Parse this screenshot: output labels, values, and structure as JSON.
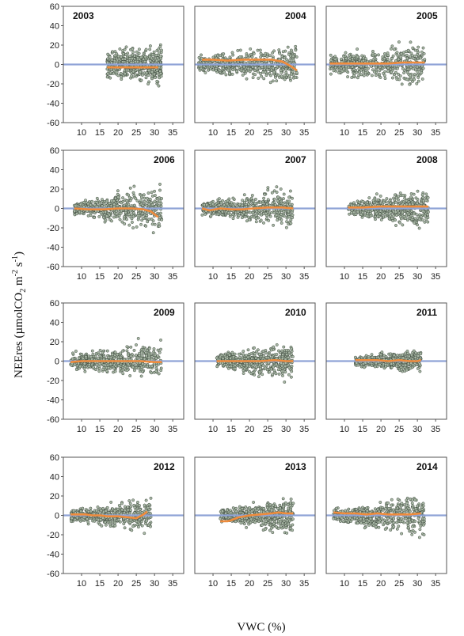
{
  "figure": {
    "ylabel_parts": [
      "NEEres (µmolCO",
      "2",
      " m",
      "-2",
      " s",
      "-1",
      ")"
    ],
    "xlabel": "VWC (%)"
  },
  "colors": {
    "points_fill": "#a9b8a6",
    "points_stroke": "#3e4a3e",
    "zero_line": "#8fa3d6",
    "trend_line": "#f08c3c",
    "frame": "#555555"
  },
  "chart_data": {
    "type": "scatter",
    "layout": "4x3 small multiples",
    "ylim": [
      -60,
      60
    ],
    "yticks": [
      60,
      40,
      20,
      0,
      -20,
      -40,
      -60
    ],
    "xlim": [
      5,
      38
    ],
    "xticks": [
      10,
      15,
      20,
      25,
      30,
      35
    ],
    "reference_line_y": 0,
    "panels": [
      {
        "year": "2003",
        "xrange": [
          17,
          32
        ],
        "spread": [
          22,
          32
        ],
        "trend": [
          [
            17,
            -3
          ],
          [
            20,
            -3
          ],
          [
            24,
            -3
          ],
          [
            28,
            -3
          ],
          [
            31,
            -3
          ]
        ]
      },
      {
        "year": "2004",
        "xrange": [
          6,
          33
        ],
        "spread": [
          14,
          36
        ],
        "trend": [
          [
            7,
            5
          ],
          [
            10,
            5
          ],
          [
            14,
            4
          ],
          [
            18,
            5
          ],
          [
            22,
            5
          ],
          [
            26,
            5
          ],
          [
            29,
            3
          ],
          [
            31,
            -1
          ],
          [
            33,
            -6
          ]
        ]
      },
      {
        "year": "2005",
        "xrange": [
          6,
          32
        ],
        "spread": [
          15,
          38
        ],
        "trend": [
          [
            6,
            1
          ],
          [
            10,
            1
          ],
          [
            14,
            1
          ],
          [
            18,
            1
          ],
          [
            22,
            1
          ],
          [
            26,
            2
          ],
          [
            30,
            2
          ],
          [
            32,
            2
          ]
        ]
      },
      {
        "year": "2006",
        "xrange": [
          8,
          32
        ],
        "spread": [
          12,
          40
        ],
        "trend": [
          [
            8,
            0
          ],
          [
            12,
            -1
          ],
          [
            16,
            -1
          ],
          [
            20,
            0
          ],
          [
            24,
            0
          ],
          [
            27,
            -1
          ],
          [
            29,
            -3
          ],
          [
            31,
            -9
          ]
        ]
      },
      {
        "year": "2007",
        "xrange": [
          7,
          32
        ],
        "spread": [
          12,
          35
        ],
        "trend": [
          [
            7,
            0
          ],
          [
            9,
            -2
          ],
          [
            12,
            0
          ],
          [
            15,
            -1
          ],
          [
            18,
            -1
          ],
          [
            21,
            0
          ],
          [
            25,
            1
          ],
          [
            29,
            1
          ],
          [
            32,
            0
          ]
        ]
      },
      {
        "year": "2008",
        "xrange": [
          11,
          33
        ],
        "spread": [
          12,
          35
        ],
        "trend": [
          [
            11,
            1
          ],
          [
            15,
            1
          ],
          [
            20,
            2
          ],
          [
            25,
            2
          ],
          [
            30,
            2
          ],
          [
            33,
            2
          ]
        ]
      },
      {
        "year": "2009",
        "xrange": [
          7,
          32
        ],
        "spread": [
          12,
          35
        ],
        "trend": [
          [
            7,
            -1
          ],
          [
            10,
            0
          ],
          [
            14,
            0
          ],
          [
            18,
            0
          ],
          [
            22,
            0
          ],
          [
            26,
            0
          ],
          [
            30,
            -1
          ],
          [
            32,
            -1
          ]
        ]
      },
      {
        "year": "2010",
        "xrange": [
          11,
          32
        ],
        "spread": [
          12,
          36
        ],
        "trend": [
          [
            11,
            0
          ],
          [
            15,
            0
          ],
          [
            19,
            0
          ],
          [
            23,
            0
          ],
          [
            27,
            1
          ],
          [
            30,
            0
          ],
          [
            32,
            0
          ]
        ]
      },
      {
        "year": "2011",
        "xrange": [
          13,
          31
        ],
        "spread": [
          8,
          20
        ],
        "trend": [
          [
            13,
            1
          ],
          [
            16,
            1
          ],
          [
            19,
            1
          ],
          [
            22,
            0
          ],
          [
            25,
            1
          ],
          [
            28,
            0
          ],
          [
            30,
            0
          ],
          [
            31,
            1
          ]
        ]
      },
      {
        "year": "2012",
        "xrange": [
          7,
          29
        ],
        "spread": [
          10,
          30
        ],
        "trend": [
          [
            7,
            1
          ],
          [
            9,
            1
          ],
          [
            11,
            1
          ],
          [
            13,
            0
          ],
          [
            15,
            0
          ],
          [
            17,
            -1
          ],
          [
            20,
            -1
          ],
          [
            23,
            -2
          ],
          [
            25,
            -3
          ],
          [
            27,
            1
          ],
          [
            28,
            4
          ]
        ]
      },
      {
        "year": "2013",
        "xrange": [
          12,
          32
        ],
        "spread": [
          10,
          32
        ],
        "trend": [
          [
            12,
            -6
          ],
          [
            14,
            -6
          ],
          [
            15,
            -5
          ],
          [
            17,
            -2
          ],
          [
            20,
            0
          ],
          [
            23,
            1
          ],
          [
            26,
            2
          ],
          [
            28,
            3
          ],
          [
            30,
            2
          ],
          [
            32,
            2
          ]
        ]
      },
      {
        "year": "2014",
        "xrange": [
          7,
          32
        ],
        "spread": [
          12,
          40
        ],
        "trend": [
          [
            7,
            3
          ],
          [
            10,
            2
          ],
          [
            13,
            2
          ],
          [
            16,
            1
          ],
          [
            19,
            2
          ],
          [
            22,
            1
          ],
          [
            25,
            1
          ],
          [
            28,
            1
          ],
          [
            31,
            2
          ]
        ]
      }
    ]
  }
}
